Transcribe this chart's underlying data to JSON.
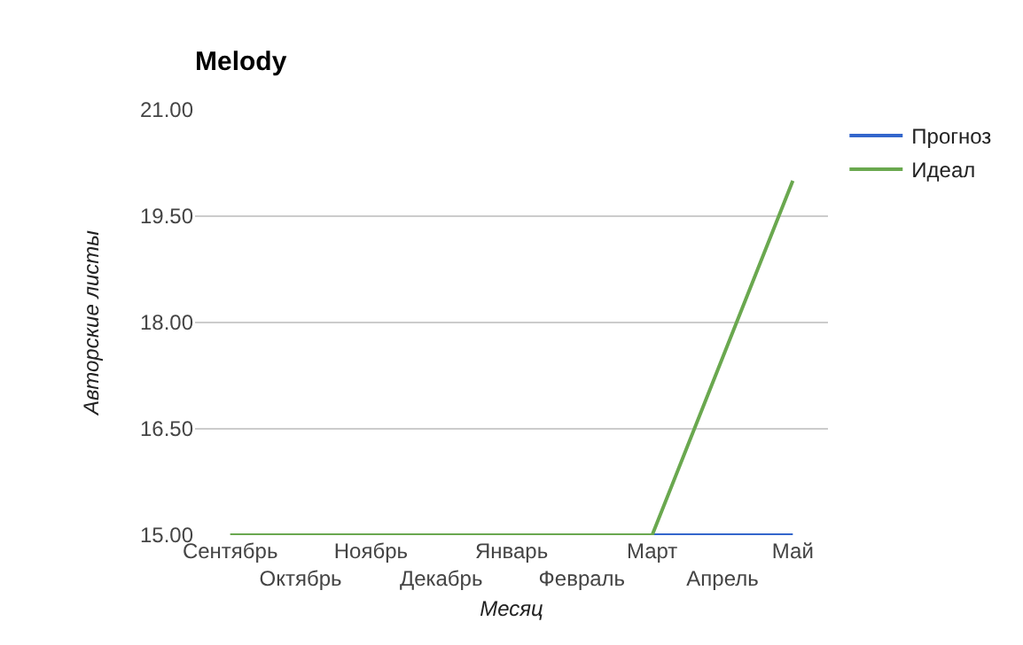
{
  "chart_data": {
    "type": "line",
    "title": "Melody",
    "xlabel": "Месяц",
    "ylabel": "Авторские листы",
    "categories": [
      "Сентябрь",
      "Октябрь",
      "Ноябрь",
      "Декабрь",
      "Январь",
      "Февраль",
      "Март",
      "Апрель",
      "Май"
    ],
    "series": [
      {
        "name": "Прогноз",
        "color": "#3366cc",
        "values": [
          null,
          null,
          null,
          null,
          null,
          null,
          15,
          15,
          15
        ]
      },
      {
        "name": "Идеал",
        "color": "#6aa84f",
        "values": [
          15,
          15,
          15,
          15,
          15,
          15,
          15,
          17.5,
          20
        ]
      }
    ],
    "ylim": [
      15,
      21
    ],
    "yticks": [
      {
        "value": 15,
        "label": "15.00"
      },
      {
        "value": 16.5,
        "label": "16.50"
      },
      {
        "value": 18,
        "label": "18.00"
      },
      {
        "value": 19.5,
        "label": "19.50"
      },
      {
        "value": 21,
        "label": "21.00"
      }
    ],
    "grid": "y",
    "legend": "top right",
    "marker": "none",
    "line_style": "solid"
  }
}
